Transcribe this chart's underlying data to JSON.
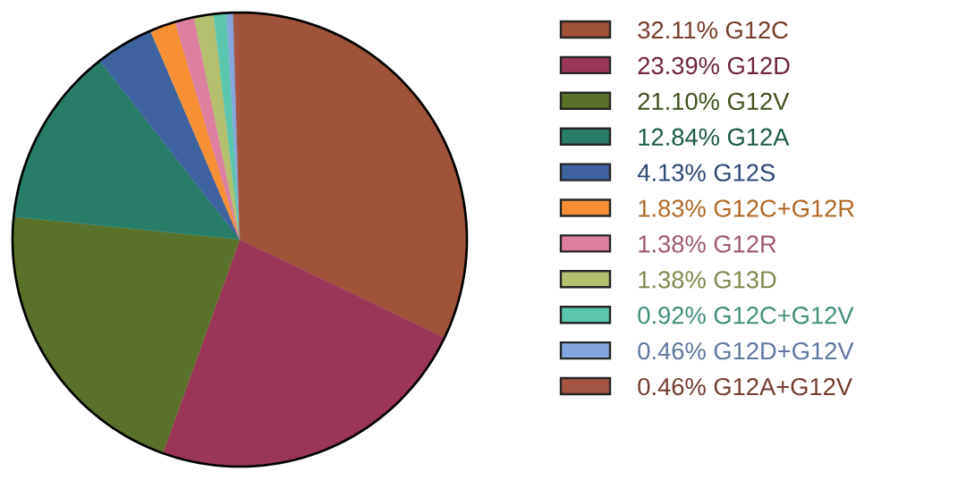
{
  "chart_data": {
    "type": "pie",
    "categories": [
      "32.11%  G12C",
      "23.39%  G12D",
      "21.10%  G12V",
      "12.84%  G12A",
      "4.13%  G12S",
      "1.83%  G12C+G12R",
      "1.38%  G12R",
      "1.38%  G13D",
      "0.92%  G12C+G12V",
      "0.46%  G12D+G12V",
      "0.46%  G12A+G12V"
    ],
    "values": [
      32.11,
      23.39,
      21.1,
      12.84,
      4.13,
      1.83,
      1.38,
      1.38,
      0.92,
      0.46,
      0.46
    ],
    "colors": [
      "#a0523a",
      "#9b3658",
      "#5a7129",
      "#287d68",
      "#3f63a0",
      "#f79034",
      "#dd7f9f",
      "#b4bf6f",
      "#5bc6ad",
      "#83a6dc",
      "#a35443"
    ],
    "legend": "right"
  }
}
